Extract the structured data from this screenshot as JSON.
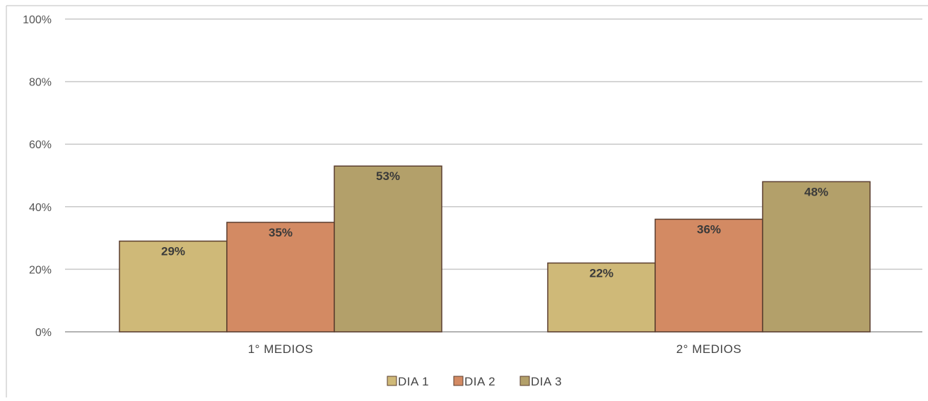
{
  "chart_data": {
    "type": "bar",
    "title": "",
    "xlabel": "",
    "ylabel": "",
    "ylim": [
      0,
      100
    ],
    "yticks": [
      "0%",
      "20%",
      "40%",
      "60%",
      "80%",
      "100%"
    ],
    "ytick_values": [
      0,
      20,
      40,
      60,
      80,
      100
    ],
    "grid": true,
    "legend_position": "bottom",
    "categories": [
      "1° MEDIOS",
      "2° MEDIOS"
    ],
    "series": [
      {
        "name": "DIA 1",
        "values": [
          29,
          22
        ],
        "labels": [
          "29%",
          "22%"
        ],
        "color": "#cfb978"
      },
      {
        "name": "DIA 2",
        "values": [
          35,
          36
        ],
        "labels": [
          "35%",
          "36%"
        ],
        "color": "#d38a63"
      },
      {
        "name": "DIA 3",
        "values": [
          53,
          48
        ],
        "labels": [
          "53%",
          "48%"
        ],
        "color": "#b3a06a"
      }
    ]
  }
}
